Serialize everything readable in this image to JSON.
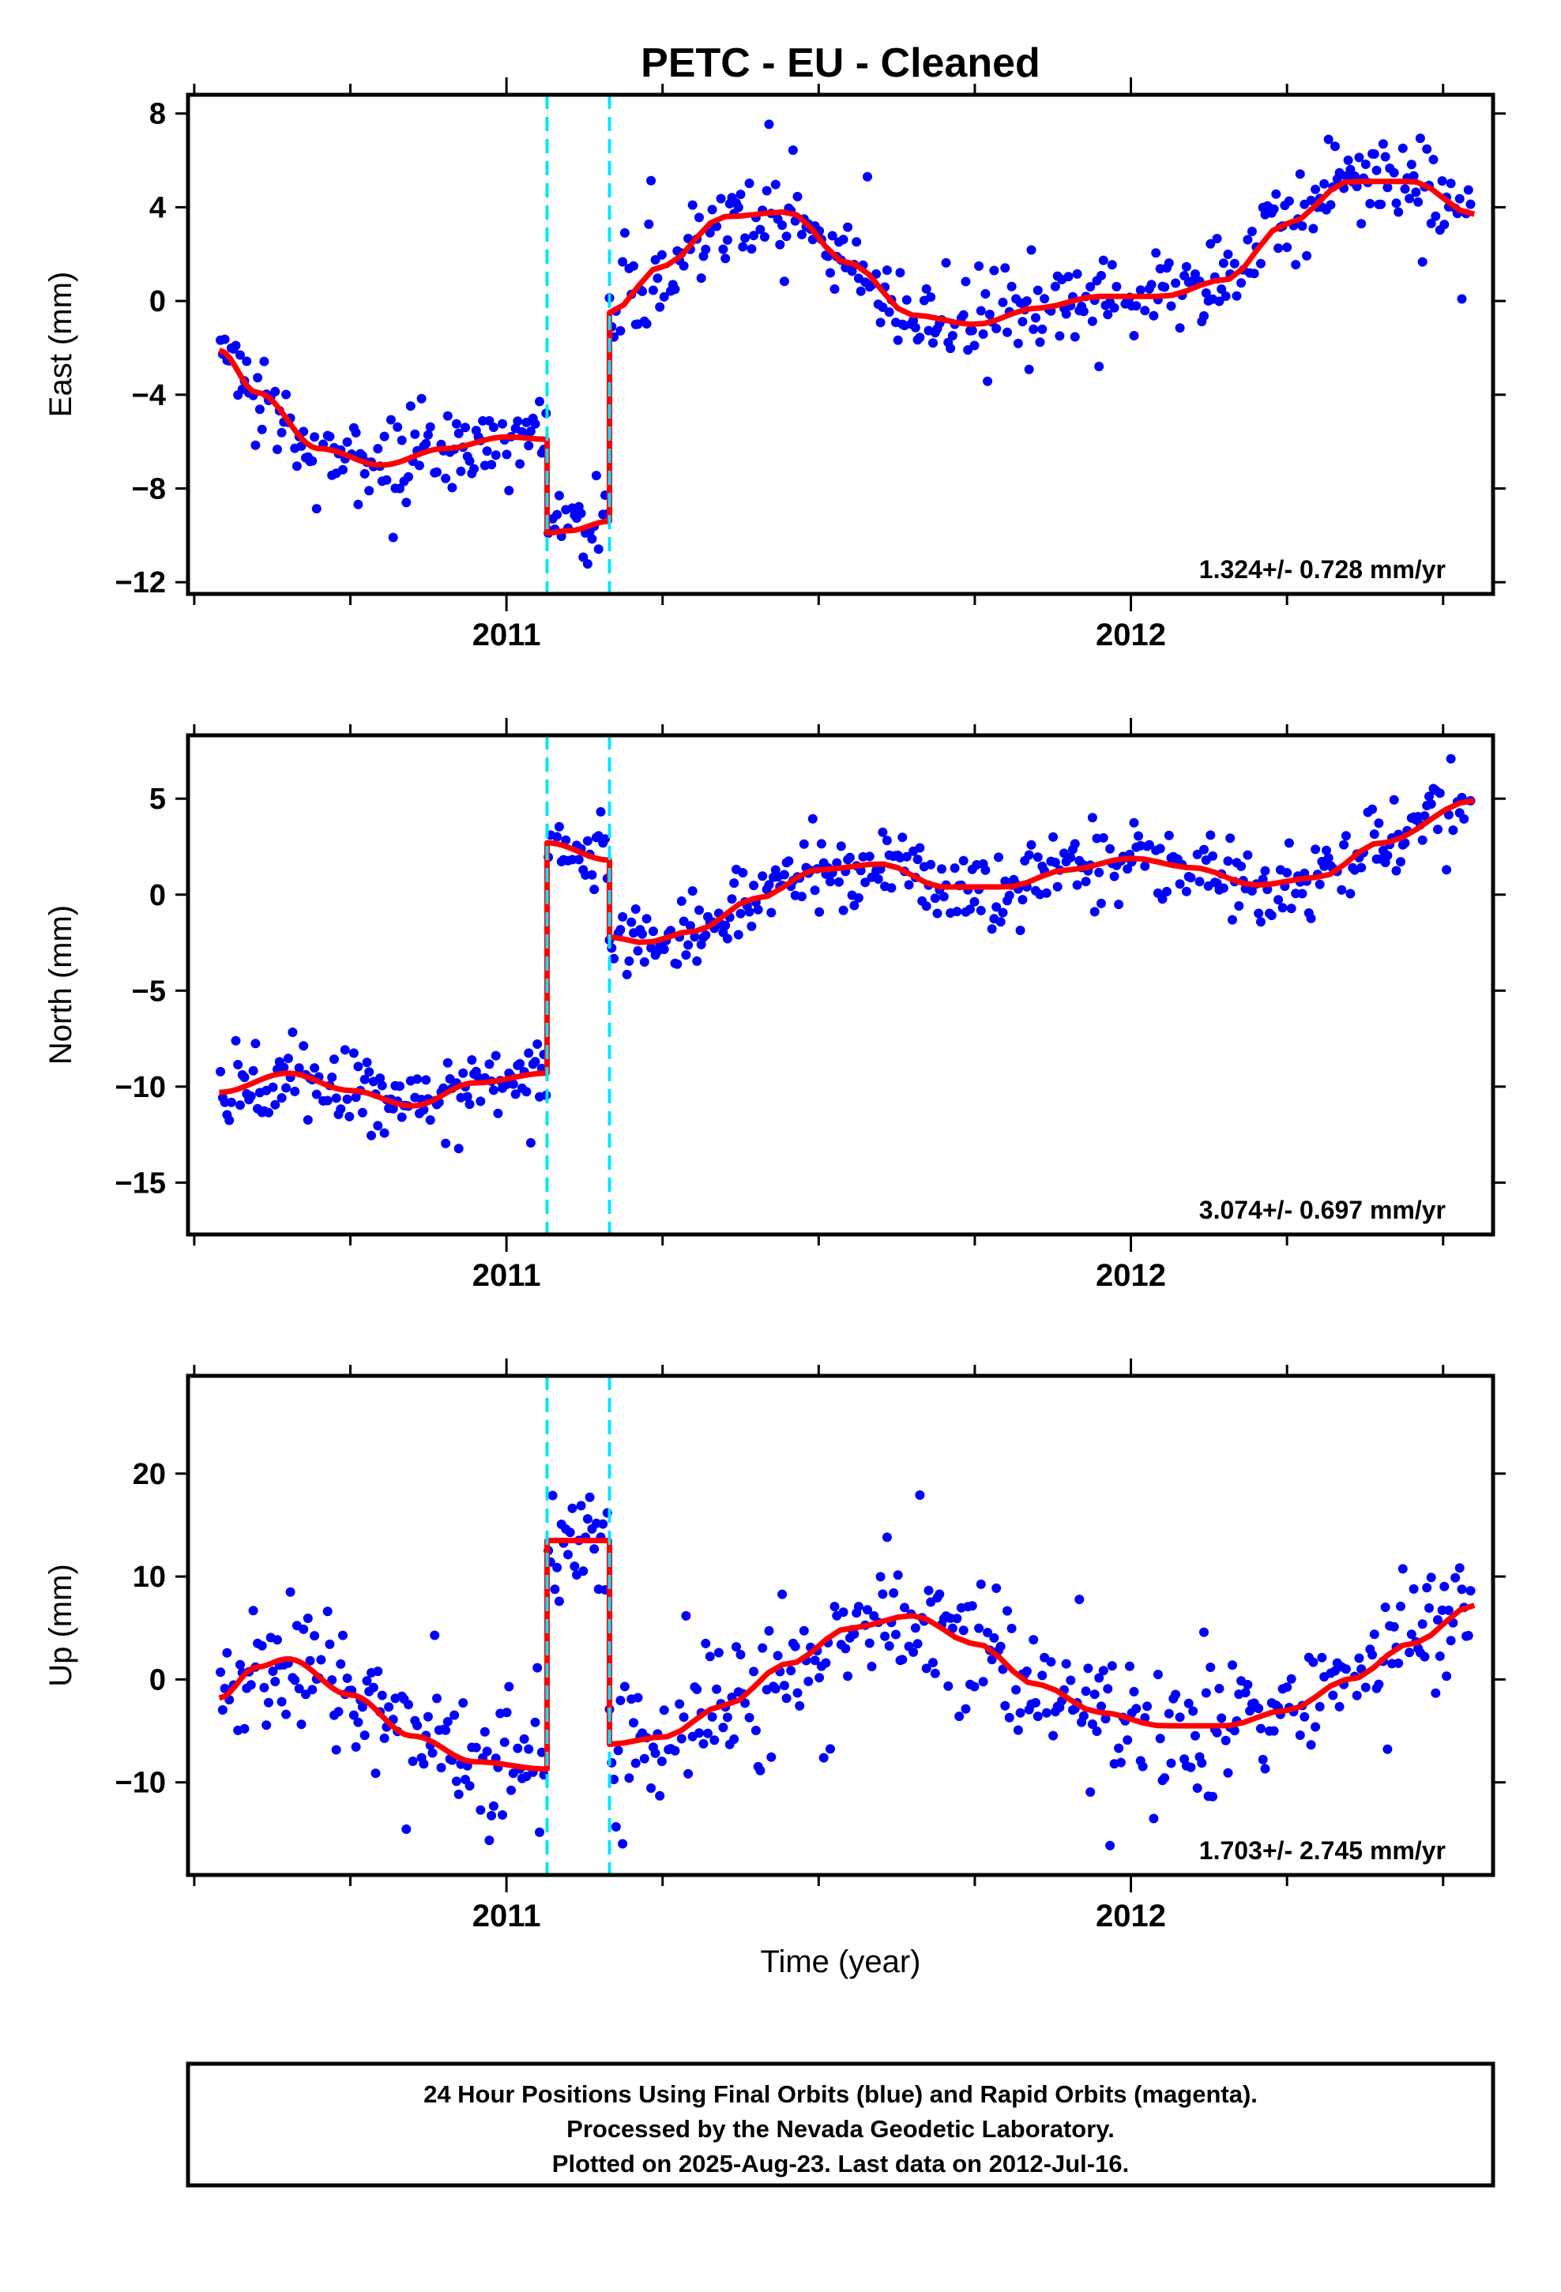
{
  "title": "PETC  - EU - Cleaned",
  "colors": {
    "points": "#0000ff",
    "model": "#ff0000",
    "steps": "#00e5ff"
  },
  "chart_data": [
    {
      "type": "scatter",
      "component": "east",
      "ylabel": "East (mm)",
      "xlabel": "",
      "rate_text": "1.324+/- 0.728 mm/yr",
      "xlim": [
        2010.49,
        2012.58
      ],
      "ylim": [
        -12.5,
        8.8
      ],
      "yticks": [
        8,
        4,
        0,
        -4,
        -8,
        -12
      ],
      "ytick_labels": [
        "8",
        "4",
        "0",
        "−4",
        "−8",
        "−12"
      ],
      "xtick_labels": [
        "2011",
        "2012"
      ],
      "xticks": [
        2011,
        2012
      ],
      "steps": [
        2011.065,
        2011.165
      ],
      "model": {
        "segments": [
          {
            "x": [
              2010.54,
              2010.6,
              2010.7,
              2010.8,
              2010.9,
              2011.0,
              2011.065
            ],
            "y": [
              -2.1,
              -3.9,
              -6.3,
              -7.0,
              -6.3,
              -5.8,
              -5.9
            ]
          },
          {
            "x": [
              2011.065,
              2011.1,
              2011.165
            ],
            "y": [
              -9.9,
              -9.8,
              -9.4
            ]
          },
          {
            "x": [
              2011.165,
              2011.25,
              2011.35,
              2011.45,
              2011.55,
              2011.65,
              2011.75,
              2011.85,
              2011.95,
              2012.05,
              2012.15,
              2012.25,
              2012.35,
              2012.45,
              2012.55
            ],
            "y": [
              -0.5,
              1.5,
              3.6,
              3.8,
              1.6,
              -0.6,
              -1.0,
              -0.3,
              0.2,
              0.2,
              0.9,
              3.3,
              5.1,
              5.1,
              3.7
            ]
          }
        ]
      },
      "noise_sd": 0.9
    },
    {
      "type": "scatter",
      "component": "north",
      "ylabel": "North (mm)",
      "xlabel": "",
      "rate_text": "3.074+/- 0.697 mm/yr",
      "xlim": [
        2010.49,
        2012.58
      ],
      "ylim": [
        -17.7,
        8.3
      ],
      "yticks": [
        5,
        0,
        -5,
        -10,
        -15
      ],
      "ytick_labels": [
        "5",
        "0",
        "−5",
        "−10",
        "−15"
      ],
      "xtick_labels": [
        "2011",
        "2012"
      ],
      "xticks": [
        2011,
        2012
      ],
      "steps": [
        2011.065,
        2011.165
      ],
      "model": {
        "segments": [
          {
            "x": [
              2010.54,
              2010.65,
              2010.75,
              2010.85,
              2010.95,
              2011.065
            ],
            "y": [
              -10.3,
              -9.3,
              -10.2,
              -11.0,
              -9.8,
              -9.3
            ]
          },
          {
            "x": [
              2011.065,
              2011.165
            ],
            "y": [
              2.7,
              1.8
            ]
          },
          {
            "x": [
              2011.165,
              2011.22,
              2011.3,
              2011.4,
              2011.5,
              2011.6,
              2011.7,
              2011.8,
              2011.9,
              2012.0,
              2012.1,
              2012.2,
              2012.3,
              2012.4,
              2012.55
            ],
            "y": [
              -2.2,
              -2.5,
              -1.9,
              -0.2,
              1.3,
              1.6,
              0.4,
              0.4,
              1.3,
              1.9,
              1.4,
              0.5,
              0.9,
              2.7,
              4.9
            ]
          }
        ]
      },
      "noise_sd": 1.0
    },
    {
      "type": "scatter",
      "component": "up",
      "ylabel": "Up (mm)",
      "xlabel": "Time (year)",
      "rate_text": "1.703+/- 2.745 mm/yr",
      "xlim": [
        2010.49,
        2012.58
      ],
      "ylim": [
        -19,
        29.5
      ],
      "yticks": [
        20,
        10,
        0,
        -10
      ],
      "ytick_labels": [
        "20",
        "10",
        "0",
        "−10"
      ],
      "xtick_labels": [
        "2011",
        "2012"
      ],
      "xticks": [
        2011,
        2012
      ],
      "steps": [
        2011.065,
        2011.165
      ],
      "model": {
        "segments": [
          {
            "x": [
              2010.54,
              2010.6,
              2010.65,
              2010.75,
              2010.85,
              2010.95,
              2011.065
            ],
            "y": [
              -1.8,
              1.2,
              2.0,
              -1.5,
              -5.5,
              -8.0,
              -8.7
            ]
          },
          {
            "x": [
              2011.065,
              2011.165
            ],
            "y": [
              13.5,
              13.5
            ]
          },
          {
            "x": [
              2011.165,
              2011.25,
              2011.35,
              2011.45,
              2011.55,
              2011.65,
              2011.75,
              2011.85,
              2011.95,
              2012.05,
              2012.15,
              2012.25,
              2012.35,
              2012.45,
              2012.55
            ],
            "y": [
              -6.3,
              -5.6,
              -2.5,
              1.5,
              5.0,
              6.2,
              3.5,
              -0.5,
              -3.2,
              -4.5,
              -4.5,
              -3.0,
              0.0,
              3.5,
              7.2
            ]
          }
        ]
      },
      "noise_sd": 3.2
    }
  ],
  "footer": {
    "line1": "24 Hour Positions Using Final Orbits (blue) and Rapid Orbits (magenta).",
    "line2": "Processed by the Nevada Geodetic Laboratory.",
    "line3": "Plotted on 2025-Aug-23. Last data on 2012-Jul-16."
  }
}
